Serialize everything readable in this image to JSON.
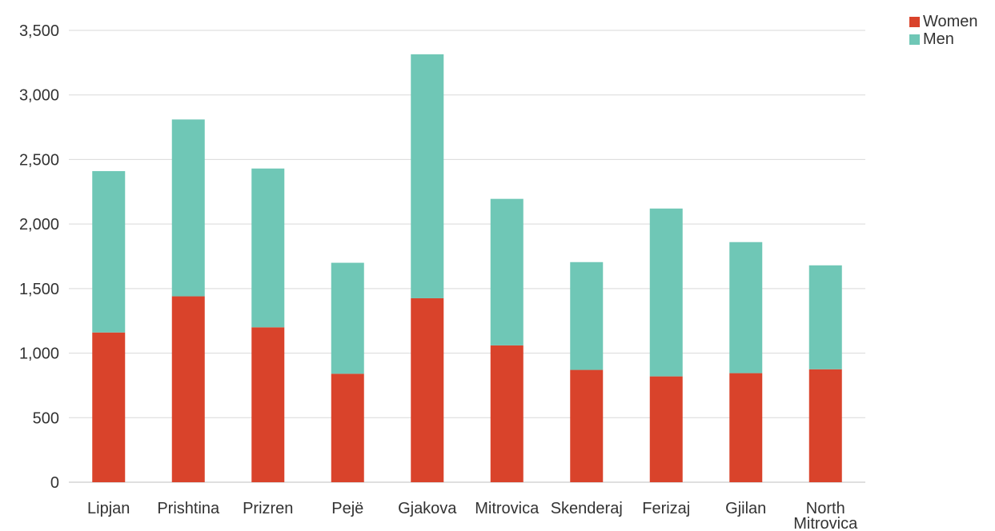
{
  "chart_data": {
    "type": "bar",
    "stacked": true,
    "categories": [
      "Lipjan",
      "Prishtina",
      "Prizren",
      "Pejë",
      "Gjakova",
      "Mitrovica",
      "Skenderaj",
      "Ferizaj",
      "Gjilan",
      "North Mitrovica"
    ],
    "series": [
      {
        "name": "Women",
        "color": "#d9432b",
        "values": [
          1160,
          1440,
          1200,
          840,
          1425,
          1060,
          870,
          820,
          845,
          875
        ]
      },
      {
        "name": "Men",
        "color": "#6fc7b6",
        "values": [
          1250,
          1370,
          1230,
          860,
          1890,
          1135,
          835,
          1300,
          1015,
          805
        ]
      }
    ],
    "yticks": [
      0,
      500,
      1000,
      1500,
      2000,
      2500,
      3000,
      3500
    ],
    "ytick_labels": [
      "0",
      "500",
      "1,000",
      "1,500",
      "2,000",
      "2,500",
      "3,000",
      "3,500"
    ],
    "ylim": [
      0,
      3500
    ],
    "grid": true,
    "legend_position": "top-right"
  }
}
